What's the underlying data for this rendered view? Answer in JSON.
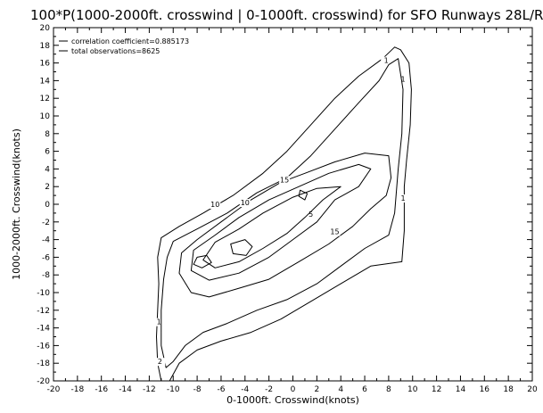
{
  "chart_data": {
    "type": "contour",
    "title": "100*P(1000-2000ft. crosswind | 0-1000ft. crosswind) for SFO Runways 28L/R",
    "xlabel": "0-1000ft. Crosswind(knots)",
    "ylabel": "1000-2000ft. Crosswind(knots)",
    "xlim": [
      -20,
      20
    ],
    "ylim": [
      -20,
      20
    ],
    "x_ticks": [
      -20,
      -18,
      -16,
      -14,
      -12,
      -10,
      -8,
      -6,
      -4,
      -2,
      0,
      2,
      4,
      6,
      8,
      10,
      12,
      14,
      16,
      18,
      20
    ],
    "y_ticks": [
      -20,
      -18,
      -16,
      -14,
      -12,
      -10,
      -8,
      -6,
      -4,
      -2,
      0,
      2,
      4,
      6,
      8,
      10,
      12,
      14,
      16,
      18,
      20
    ],
    "x_tick_labels": [
      "-20",
      "-18",
      "-16",
      "-14",
      "-12",
      "-10",
      "-8",
      "-6",
      "-4",
      "-2",
      "0",
      "2",
      "4",
      "6",
      "8",
      "10",
      "12",
      "14",
      "16",
      "18",
      "20"
    ],
    "y_tick_labels": [
      "-20",
      "-18",
      "-16",
      "-14",
      "-12",
      "-10",
      "-8",
      "-6",
      "-4",
      "-2",
      "0",
      "2",
      "4",
      "6",
      "8",
      "10",
      "12",
      "14",
      "16",
      "18",
      "20"
    ],
    "annotations": {
      "correlation": "correlation coefficient=0.885173",
      "observations": "total observations=8625"
    },
    "contours": [
      {
        "level": "1",
        "points": [
          [
            9.0,
            17.5
          ],
          [
            9.7,
            16.0
          ],
          [
            9.9,
            13.0
          ],
          [
            9.8,
            9.0
          ],
          [
            9.5,
            5.0
          ],
          [
            9.3,
            2.0
          ],
          [
            9.3,
            -3.0
          ],
          [
            9.1,
            -6.5
          ],
          [
            6.5,
            -7.0
          ],
          [
            4.0,
            -9.0
          ],
          [
            1.5,
            -11.0
          ],
          [
            -1.0,
            -13.0
          ],
          [
            -3.5,
            -14.5
          ],
          [
            -6.0,
            -15.5
          ],
          [
            -8.0,
            -16.5
          ],
          [
            -9.5,
            -18.0
          ],
          [
            -10.3,
            -20.0
          ],
          [
            -11.0,
            -20.0
          ],
          [
            -11.3,
            -18.0
          ],
          [
            -11.4,
            -15.0
          ],
          [
            -11.3,
            -12.0
          ],
          [
            -11.2,
            -9.0
          ],
          [
            -11.3,
            -6.0
          ],
          [
            -11.0,
            -3.8
          ],
          [
            -9.5,
            -2.5
          ],
          [
            -7.5,
            -1.0
          ],
          [
            -5.0,
            1.0
          ],
          [
            -2.5,
            3.5
          ],
          [
            -0.5,
            6.0
          ],
          [
            1.5,
            9.0
          ],
          [
            3.5,
            12.0
          ],
          [
            5.5,
            14.5
          ],
          [
            7.5,
            16.5
          ],
          [
            8.5,
            17.8
          ]
        ],
        "labels": [
          [
            7.8,
            16.1
          ],
          [
            9.2,
            14.0
          ],
          [
            9.2,
            0.5
          ],
          [
            -11.2,
            -13.5
          ]
        ]
      },
      {
        "level": "2",
        "points": [
          [
            8.8,
            16.5
          ],
          [
            9.2,
            13.0
          ],
          [
            9.1,
            8.0
          ],
          [
            8.8,
            4.0
          ],
          [
            8.5,
            -1.0
          ],
          [
            8.0,
            -3.5
          ],
          [
            6.0,
            -5.0
          ],
          [
            4.0,
            -7.0
          ],
          [
            2.0,
            -9.0
          ],
          [
            -0.5,
            -10.8
          ],
          [
            -3.0,
            -12.0
          ],
          [
            -5.5,
            -13.5
          ],
          [
            -7.5,
            -14.5
          ],
          [
            -9.0,
            -16.0
          ],
          [
            -10.0,
            -17.8
          ],
          [
            -10.6,
            -18.5
          ],
          [
            -11.0,
            -16.0
          ],
          [
            -11.0,
            -12.0
          ],
          [
            -10.8,
            -8.5
          ],
          [
            -10.5,
            -6.0
          ],
          [
            -10.0,
            -4.2
          ],
          [
            -8.0,
            -2.8
          ],
          [
            -5.5,
            -1.0
          ],
          [
            -3.0,
            1.3
          ],
          [
            -0.5,
            3.0
          ],
          [
            1.5,
            5.5
          ],
          [
            3.5,
            8.5
          ],
          [
            5.5,
            11.5
          ],
          [
            7.2,
            14.0
          ],
          [
            8.0,
            15.8
          ]
        ],
        "labels": [
          [
            -11.1,
            -18.0
          ]
        ]
      },
      {
        "level": "5",
        "points": [
          [
            8.0,
            5.5
          ],
          [
            8.2,
            3.0
          ],
          [
            7.8,
            1.0
          ],
          [
            6.5,
            -0.5
          ],
          [
            5.0,
            -2.5
          ],
          [
            3.0,
            -4.5
          ],
          [
            0.5,
            -6.5
          ],
          [
            -2.0,
            -8.5
          ],
          [
            -4.5,
            -9.5
          ],
          [
            -7.0,
            -10.5
          ],
          [
            -8.5,
            -10.0
          ],
          [
            -9.5,
            -7.8
          ],
          [
            -9.3,
            -5.5
          ],
          [
            -8.0,
            -4.0
          ],
          [
            -6.0,
            -2.0
          ],
          [
            -3.5,
            0.5
          ],
          [
            -1.0,
            2.5
          ],
          [
            1.0,
            3.5
          ],
          [
            3.5,
            4.8
          ],
          [
            6.0,
            5.8
          ]
        ],
        "labels": [
          [
            1.5,
            -1.3
          ]
        ]
      },
      {
        "level": "10",
        "points": [
          [
            6.5,
            4.0
          ],
          [
            5.5,
            2.0
          ],
          [
            3.5,
            0.5
          ],
          [
            2.0,
            -2.0
          ],
          [
            0.0,
            -4.0
          ],
          [
            -2.0,
            -6.0
          ],
          [
            -4.5,
            -7.8
          ],
          [
            -7.0,
            -8.6
          ],
          [
            -8.5,
            -7.5
          ],
          [
            -8.3,
            -5.2
          ],
          [
            -6.5,
            -3.5
          ],
          [
            -4.5,
            -1.5
          ],
          [
            -2.0,
            0.5
          ],
          [
            0.5,
            2.0
          ],
          [
            3.0,
            3.5
          ],
          [
            5.5,
            4.5
          ]
        ],
        "labels": [
          [
            -4.0,
            0.0
          ],
          [
            -6.5,
            -0.2
          ]
        ]
      },
      {
        "level": "15",
        "points": [
          [
            4.0,
            2.0
          ],
          [
            2.5,
            0.5
          ],
          [
            1.0,
            -1.5
          ],
          [
            -0.5,
            -3.3
          ],
          [
            -2.5,
            -5.0
          ],
          [
            -4.5,
            -6.5
          ],
          [
            -6.5,
            -7.2
          ],
          [
            -7.5,
            -6.3
          ],
          [
            -6.5,
            -4.3
          ],
          [
            -4.5,
            -2.8
          ],
          [
            -2.5,
            -1.0
          ],
          [
            0.0,
            0.8
          ],
          [
            2.0,
            1.8
          ]
        ],
        "labels": [
          [
            3.5,
            -3.3
          ],
          [
            -0.7,
            2.6
          ]
        ]
      },
      {
        "level": "20",
        "points": [
          [
            -5.2,
            -4.5
          ],
          [
            -4.0,
            -4.0
          ],
          [
            -3.4,
            -4.8
          ],
          [
            -3.9,
            -5.8
          ],
          [
            -5.0,
            -5.6
          ]
        ],
        "labels": []
      },
      {
        "level": "20",
        "points": [
          [
            -8.0,
            -6.0
          ],
          [
            -7.2,
            -5.8
          ],
          [
            -6.8,
            -6.6
          ],
          [
            -7.6,
            -7.2
          ],
          [
            -8.3,
            -6.8
          ]
        ],
        "labels": []
      },
      {
        "level": "20",
        "points": [
          [
            0.6,
            1.6
          ],
          [
            1.2,
            1.2
          ],
          [
            1.0,
            0.5
          ],
          [
            0.5,
            0.9
          ]
        ],
        "labels": []
      }
    ]
  }
}
